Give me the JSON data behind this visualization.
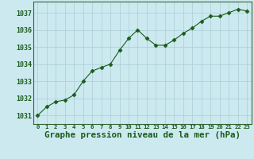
{
  "x": [
    0,
    1,
    2,
    3,
    4,
    5,
    6,
    7,
    8,
    9,
    10,
    11,
    12,
    13,
    14,
    15,
    16,
    17,
    18,
    19,
    20,
    21,
    22,
    23
  ],
  "y": [
    1031.0,
    1031.5,
    1031.8,
    1031.9,
    1032.2,
    1033.0,
    1033.6,
    1033.8,
    1034.0,
    1034.8,
    1035.5,
    1036.0,
    1035.5,
    1035.1,
    1035.1,
    1035.4,
    1035.8,
    1036.1,
    1036.5,
    1036.8,
    1036.8,
    1037.0,
    1037.2,
    1037.1
  ],
  "ylim": [
    1030.5,
    1037.65
  ],
  "yticks": [
    1031,
    1032,
    1033,
    1034,
    1035,
    1036,
    1037
  ],
  "xticks": [
    0,
    1,
    2,
    3,
    4,
    5,
    6,
    7,
    8,
    9,
    10,
    11,
    12,
    13,
    14,
    15,
    16,
    17,
    18,
    19,
    20,
    21,
    22,
    23
  ],
  "line_color": "#1a5c1a",
  "marker": "D",
  "marker_size": 2.5,
  "bg_color": "#cce9f0",
  "grid_color": "#aacdd6",
  "xlabel": "Graphe pression niveau de la mer (hPa)",
  "xlabel_color": "#1a5c1a",
  "tick_color": "#1a5c1a",
  "spine_color": "#336633",
  "ytick_fontsize": 6.0,
  "xtick_fontsize": 5.2,
  "xlabel_fontsize": 7.8
}
